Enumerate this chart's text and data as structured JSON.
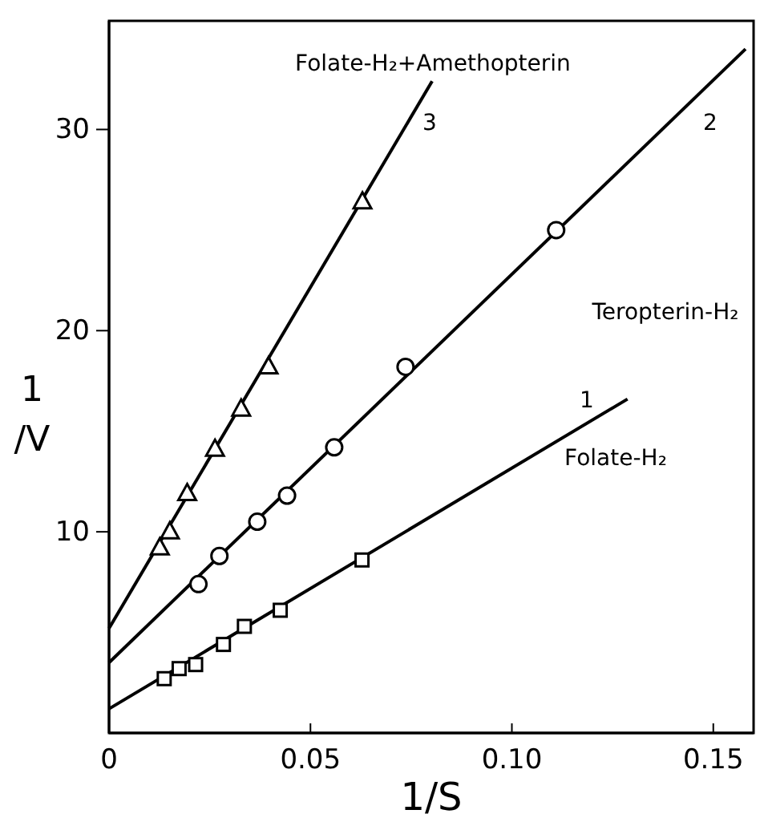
{
  "chart_data": {
    "type": "scatter",
    "xlabel": "1/S",
    "ylabel": "1/V",
    "xlim": [
      0,
      0.16
    ],
    "ylim": [
      0,
      35.4
    ],
    "xticks": [
      0,
      {
        "value": 0.05,
        "label": "0.05"
      },
      {
        "value": 0.1,
        "label": "0.10"
      },
      0.15
    ],
    "yticks": [
      {
        "value": 10,
        "label": "10"
      },
      {
        "value": 20,
        "label": "20"
      },
      {
        "value": 30,
        "label": "30"
      }
    ],
    "grid": false,
    "series": [
      {
        "type": "scatter",
        "marker": "square",
        "color": "#000000",
        "x": [
          0.0137,
          0.0174,
          0.0215,
          0.0284,
          0.0336,
          0.0425,
          0.0628
        ],
        "values": [
          2.7,
          3.2,
          3.4,
          4.4,
          5.3,
          6.1,
          8.6
        ]
      },
      {
        "type": "scatter",
        "marker": "circle",
        "color": "#000000",
        "x": [
          0.0222,
          0.0274,
          0.0368,
          0.0442,
          0.0559,
          0.0736,
          0.111
        ],
        "values": [
          7.4,
          8.8,
          10.5,
          11.8,
          14.2,
          18.2,
          25.0
        ]
      },
      {
        "type": "scatter",
        "marker": "triangle",
        "color": "#000000",
        "x": [
          0.0126,
          0.0151,
          0.0194,
          0.0263,
          0.0328,
          0.0396,
          0.0629
        ],
        "values": [
          9.2,
          10.0,
          11.9,
          14.1,
          16.1,
          18.2,
          26.4
        ]
      },
      {
        "type": "line",
        "marker": "none",
        "line_style": "solid",
        "color": "#000000",
        "x": [
          0,
          0.1287
        ],
        "values": [
          1.2,
          16.6
        ]
      },
      {
        "type": "line",
        "marker": "none",
        "line_style": "solid",
        "color": "#000000",
        "x": [
          0,
          0.158
        ],
        "values": [
          3.5,
          34.0
        ]
      },
      {
        "type": "line",
        "marker": "none",
        "line_style": "solid",
        "color": "#000000",
        "x": [
          0,
          0.0802
        ],
        "values": [
          5.2,
          32.4
        ]
      }
    ],
    "annotations": [
      "Folate-H₂+Amethopterin",
      "3",
      "2",
      "1",
      "Teropterin-H₂",
      "Folate-H₂"
    ]
  }
}
